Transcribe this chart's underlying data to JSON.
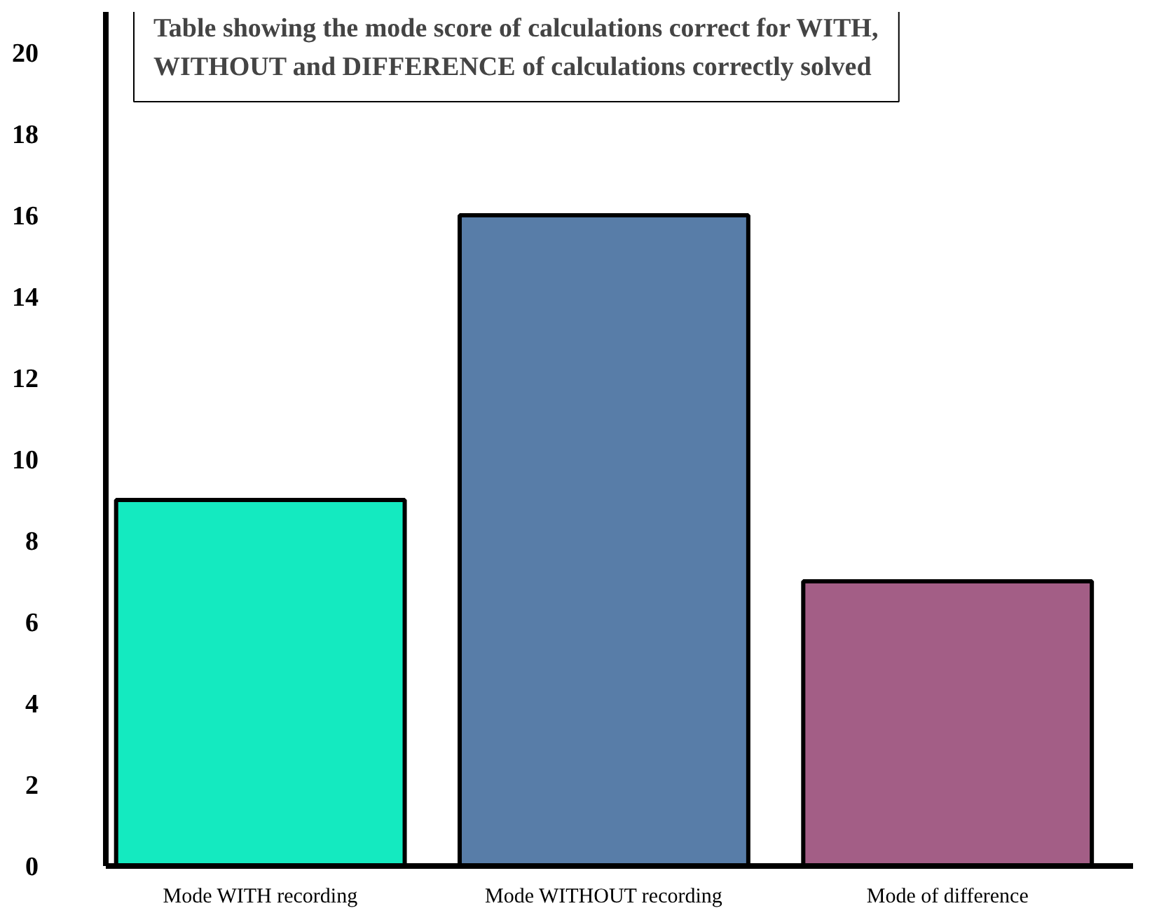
{
  "chart_data": {
    "type": "bar",
    "title": "Table showing the mode score of calculations correct for WITH,\nWITHOUT and DIFFERENCE of calculations correctly solved",
    "categories": [
      "Mode WITH recording",
      "Mode WITHOUT recording",
      "Mode of difference"
    ],
    "values": [
      9,
      16,
      7
    ],
    "colors": [
      "#14eac0",
      "#587da8",
      "#a35e86"
    ],
    "ylim": [
      0,
      21
    ],
    "yticks": [
      0,
      2,
      4,
      6,
      8,
      10,
      12,
      14,
      16,
      18,
      20
    ],
    "grid": false
  }
}
